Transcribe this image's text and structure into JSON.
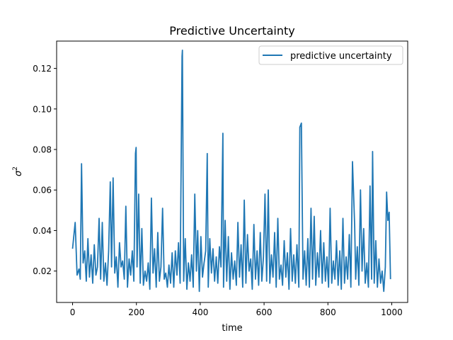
{
  "chart_data": {
    "type": "line",
    "title": "Predictive Uncertainty",
    "xlabel": "time",
    "ylabel_base": "σ",
    "ylabel_sup": "2",
    "xlim": [
      -50,
      1050
    ],
    "ylim": [
      0.0045,
      0.1335
    ],
    "xticks": [
      0,
      200,
      400,
      600,
      800,
      1000
    ],
    "xtick_labels": [
      "0",
      "200",
      "400",
      "600",
      "800",
      "1000"
    ],
    "yticks": [
      0.02,
      0.04,
      0.06,
      0.08,
      0.1,
      0.12
    ],
    "ytick_labels": [
      "0.02",
      "0.04",
      "0.06",
      "0.08",
      "0.10",
      "0.12"
    ],
    "legend_position": "top-right",
    "grid": false,
    "series": [
      {
        "name": "predictive uncertainty",
        "color": "#1f77b4",
        "x": [
          0,
          8,
          14,
          20,
          24,
          28,
          33,
          38,
          43,
          48,
          53,
          58,
          63,
          68,
          73,
          78,
          83,
          88,
          93,
          98,
          103,
          108,
          113,
          118,
          122,
          127,
          132,
          137,
          142,
          147,
          152,
          157,
          162,
          167,
          172,
          177,
          182,
          187,
          192,
          197,
          199,
          202,
          207,
          212,
          217,
          222,
          227,
          232,
          237,
          242,
          247,
          252,
          257,
          262,
          267,
          272,
          277,
          282,
          287,
          292,
          297,
          302,
          307,
          312,
          317,
          322,
          327,
          332,
          337,
          343,
          344,
          348,
          353,
          358,
          363,
          368,
          373,
          378,
          383,
          388,
          392,
          397,
          402,
          407,
          412,
          417,
          422,
          425,
          430,
          435,
          440,
          445,
          450,
          455,
          460,
          465,
          471,
          473,
          478,
          483,
          488,
          493,
          498,
          503,
          508,
          513,
          518,
          523,
          528,
          533,
          538,
          543,
          548,
          553,
          558,
          563,
          568,
          573,
          578,
          583,
          588,
          593,
          598,
          603,
          608,
          613,
          618,
          623,
          628,
          633,
          638,
          643,
          648,
          653,
          658,
          663,
          668,
          673,
          678,
          683,
          688,
          693,
          698,
          703,
          709,
          712,
          717,
          722,
          727,
          732,
          737,
          742,
          747,
          752,
          757,
          762,
          767,
          772,
          777,
          782,
          787,
          792,
          797,
          802,
          807,
          812,
          817,
          822,
          827,
          832,
          837,
          842,
          847,
          852,
          857,
          862,
          867,
          872,
          877,
          884,
          887,
          892,
          897,
          902,
          907,
          912,
          917,
          922,
          927,
          932,
          937,
          940,
          945,
          950,
          955,
          960,
          965,
          970,
          975,
          980,
          984,
          988,
          992,
          996
        ],
        "values": [
          0.031,
          0.044,
          0.018,
          0.021,
          0.016,
          0.073,
          0.024,
          0.03,
          0.015,
          0.036,
          0.017,
          0.028,
          0.014,
          0.033,
          0.018,
          0.022,
          0.046,
          0.016,
          0.044,
          0.015,
          0.024,
          0.013,
          0.03,
          0.064,
          0.022,
          0.066,
          0.019,
          0.027,
          0.012,
          0.034,
          0.022,
          0.025,
          0.016,
          0.052,
          0.012,
          0.026,
          0.018,
          0.03,
          0.015,
          0.078,
          0.081,
          0.022,
          0.058,
          0.014,
          0.041,
          0.013,
          0.02,
          0.015,
          0.024,
          0.011,
          0.056,
          0.019,
          0.031,
          0.012,
          0.039,
          0.015,
          0.022,
          0.051,
          0.016,
          0.019,
          0.012,
          0.023,
          0.014,
          0.029,
          0.012,
          0.03,
          0.018,
          0.034,
          0.014,
          0.126,
          0.129,
          0.015,
          0.036,
          0.011,
          0.024,
          0.015,
          0.028,
          0.012,
          0.058,
          0.02,
          0.04,
          0.01,
          0.037,
          0.017,
          0.024,
          0.03,
          0.078,
          0.012,
          0.036,
          0.019,
          0.031,
          0.015,
          0.027,
          0.014,
          0.032,
          0.022,
          0.088,
          0.012,
          0.045,
          0.015,
          0.037,
          0.011,
          0.029,
          0.016,
          0.025,
          0.013,
          0.044,
          0.017,
          0.033,
          0.012,
          0.055,
          0.014,
          0.038,
          0.02,
          0.026,
          0.011,
          0.043,
          0.016,
          0.03,
          0.013,
          0.039,
          0.015,
          0.027,
          0.058,
          0.015,
          0.06,
          0.014,
          0.028,
          0.017,
          0.039,
          0.012,
          0.046,
          0.016,
          0.023,
          0.013,
          0.035,
          0.017,
          0.029,
          0.011,
          0.041,
          0.015,
          0.028,
          0.014,
          0.033,
          0.012,
          0.091,
          0.093,
          0.016,
          0.03,
          0.013,
          0.036,
          0.012,
          0.051,
          0.016,
          0.047,
          0.013,
          0.029,
          0.017,
          0.04,
          0.014,
          0.034,
          0.015,
          0.027,
          0.012,
          0.051,
          0.014,
          0.025,
          0.016,
          0.035,
          0.013,
          0.03,
          0.011,
          0.046,
          0.014,
          0.027,
          0.016,
          0.038,
          0.012,
          0.074,
          0.042,
          0.016,
          0.032,
          0.013,
          0.06,
          0.02,
          0.041,
          0.014,
          0.024,
          0.012,
          0.062,
          0.016,
          0.079,
          0.014,
          0.035,
          0.012,
          0.026,
          0.014,
          0.02,
          0.01,
          0.022,
          0.059,
          0.045,
          0.049,
          0.016
        ]
      }
    ]
  }
}
